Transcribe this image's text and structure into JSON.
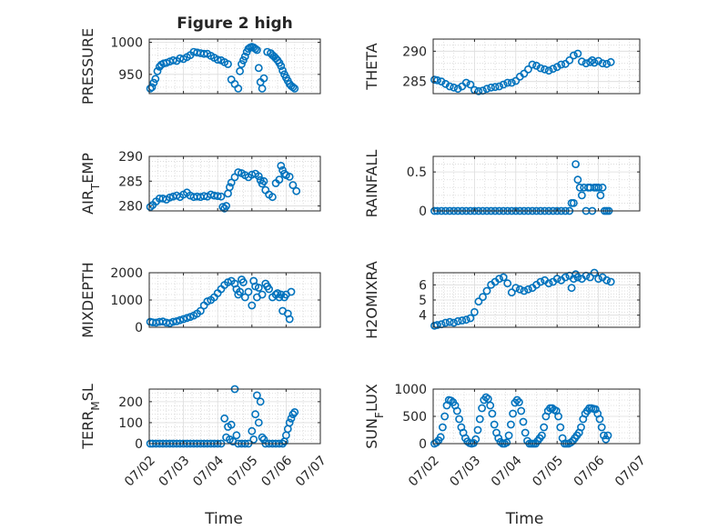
{
  "figure": {
    "title": "Figure 2 high",
    "xlabel": "Time",
    "x_tick_labels": [
      "07/02",
      "07/03",
      "07/04",
      "07/05",
      "07/06",
      "07/07"
    ]
  },
  "chart_data": [
    {
      "type": "scatter",
      "title": "Figure 2 high",
      "ylabel": "PRESSURE",
      "xlim": [
        0,
        5
      ],
      "ylim": [
        920,
        1005
      ],
      "yticks": [
        950,
        1000
      ],
      "grid": true,
      "marker_color": "#0072BD",
      "x": [
        0.03,
        0.08,
        0.13,
        0.18,
        0.24,
        0.3,
        0.35,
        0.42,
        0.5,
        0.6,
        0.7,
        0.8,
        0.9,
        1,
        1.1,
        1.2,
        1.3,
        1.4,
        1.5,
        1.6,
        1.7,
        1.8,
        1.9,
        2,
        2.1,
        2.2,
        2.3,
        2.4,
        2.5,
        2.6,
        2.65,
        2.7,
        2.75,
        2.8,
        2.85,
        2.9,
        2.95,
        3,
        3.05,
        3.1,
        3.15,
        3.2,
        3.25,
        3.3,
        3.35,
        3.45,
        3.55,
        3.6,
        3.65,
        3.7,
        3.75,
        3.8,
        3.85,
        3.9,
        3.95,
        4,
        4.05,
        4.1,
        4.15,
        4.2,
        4.25
      ],
      "y": [
        928,
        930,
        937,
        943,
        955,
        962,
        965,
        967,
        968,
        970,
        972,
        971,
        975,
        974,
        977,
        980,
        985,
        984,
        983,
        982,
        982,
        979,
        976,
        973,
        972,
        969,
        966,
        942,
        935,
        928,
        955,
        966,
        972,
        978,
        985,
        990,
        992,
        993,
        992,
        990,
        988,
        960,
        938,
        928,
        944,
        985,
        983,
        980,
        978,
        975,
        972,
        968,
        963,
        956,
        950,
        945,
        940,
        935,
        932,
        930,
        928
      ]
    },
    {
      "type": "scatter",
      "ylabel": "THETA",
      "xlim": [
        0,
        5
      ],
      "ylim": [
        283,
        292
      ],
      "yticks": [
        285,
        290
      ],
      "grid": true,
      "marker_color": "#0072BD",
      "x": [
        0.03,
        0.1,
        0.2,
        0.3,
        0.4,
        0.5,
        0.6,
        0.7,
        0.8,
        0.9,
        1,
        1.1,
        1.2,
        1.3,
        1.4,
        1.5,
        1.6,
        1.7,
        1.8,
        1.9,
        2,
        2.1,
        2.2,
        2.3,
        2.4,
        2.5,
        2.6,
        2.7,
        2.8,
        2.9,
        3,
        3.1,
        3.2,
        3.3,
        3.4,
        3.5,
        3.6,
        3.7,
        3.8,
        3.85,
        3.9,
        4,
        4.1,
        4.2,
        4.3
      ],
      "y": [
        285.3,
        285.2,
        285,
        284.6,
        284.2,
        284,
        283.8,
        284.2,
        284.8,
        284.5,
        283.6,
        283.4,
        283.5,
        283.8,
        284,
        284.1,
        284.2,
        284.5,
        284.8,
        284.8,
        285.1,
        285.8,
        286.3,
        287,
        287.8,
        287.6,
        287.2,
        287,
        286.8,
        287.1,
        287.4,
        287.8,
        287.9,
        288.5,
        289.3,
        289.6,
        288.3,
        288,
        288.2,
        288.5,
        288.1,
        288.4,
        288,
        287.9,
        288.2
      ]
    },
    {
      "type": "scatter",
      "ylabel": "AIR_TEMP",
      "xlim": [
        0,
        5
      ],
      "ylim": [
        279,
        290
      ],
      "yticks": [
        280,
        285,
        290
      ],
      "grid": true,
      "marker_color": "#0072BD",
      "x": [
        0.03,
        0.1,
        0.2,
        0.3,
        0.4,
        0.5,
        0.6,
        0.7,
        0.8,
        0.9,
        1,
        1.1,
        1.2,
        1.3,
        1.4,
        1.5,
        1.6,
        1.7,
        1.8,
        1.9,
        2,
        2.1,
        2.15,
        2.2,
        2.25,
        2.3,
        2.35,
        2.4,
        2.5,
        2.6,
        2.7,
        2.8,
        2.9,
        3,
        3.1,
        3.2,
        3.25,
        3.3,
        3.35,
        3.4,
        3.5,
        3.6,
        3.7,
        3.8,
        3.85,
        3.9,
        3.95,
        4,
        4.1,
        4.2,
        4.3
      ],
      "y": [
        279.8,
        280.2,
        280.9,
        281.5,
        281.5,
        281.3,
        281.7,
        281.9,
        282.1,
        281.8,
        282.3,
        282.7,
        282.1,
        281.8,
        281.9,
        281.8,
        282,
        281.9,
        282.3,
        282.1,
        282,
        281.9,
        279.8,
        279.5,
        280,
        282.5,
        283.8,
        284.7,
        285.8,
        286.8,
        286.6,
        286.2,
        285.8,
        286.3,
        286.5,
        286,
        285.2,
        284.5,
        285,
        283.2,
        282.3,
        281.8,
        284.6,
        285.3,
        288.1,
        287.2,
        286.5,
        286.2,
        285.9,
        284.2,
        283
      ]
    },
    {
      "type": "scatter",
      "ylabel": "RAINFALL",
      "xlim": [
        0,
        5
      ],
      "ylim": [
        0,
        0.7
      ],
      "yticks": [
        0,
        0.5
      ],
      "grid": true,
      "marker_color": "#0072BD",
      "x": [
        0.03,
        0.1,
        0.2,
        0.3,
        0.4,
        0.5,
        0.6,
        0.7,
        0.8,
        0.9,
        1,
        1.1,
        1.2,
        1.3,
        1.4,
        1.5,
        1.6,
        1.7,
        1.8,
        1.9,
        2,
        2.1,
        2.2,
        2.3,
        2.4,
        2.5,
        2.6,
        2.7,
        2.8,
        2.9,
        3,
        3.1,
        3.2,
        3.3,
        3.35,
        3.4,
        3.45,
        3.5,
        3.55,
        3.6,
        3.65,
        3.7,
        3.75,
        3.8,
        3.85,
        3.9,
        3.95,
        4,
        4.05,
        4.1,
        4.15,
        4.2,
        4.25
      ],
      "y": [
        0,
        0,
        0,
        0,
        0,
        0,
        0,
        0,
        0,
        0,
        0,
        0,
        0,
        0,
        0,
        0,
        0,
        0,
        0,
        0,
        0,
        0,
        0,
        0,
        0,
        0,
        0,
        0,
        0,
        0,
        0,
        0,
        0,
        0,
        0.1,
        0.1,
        0.6,
        0.4,
        0.3,
        0.2,
        0.3,
        0,
        0.3,
        0.3,
        0,
        0.3,
        0.3,
        0.3,
        0.2,
        0.3,
        0,
        0,
        0
      ]
    },
    {
      "type": "scatter",
      "ylabel": "MIXDEPTH",
      "xlim": [
        0,
        5
      ],
      "ylim": [
        0,
        2000
      ],
      "yticks": [
        0,
        1000,
        2000
      ],
      "grid": true,
      "marker_color": "#0072BD",
      "x": [
        0.03,
        0.1,
        0.2,
        0.3,
        0.4,
        0.5,
        0.6,
        0.7,
        0.8,
        0.9,
        1,
        1.1,
        1.2,
        1.3,
        1.4,
        1.5,
        1.6,
        1.7,
        1.8,
        1.9,
        2,
        2.1,
        2.2,
        2.3,
        2.4,
        2.5,
        2.55,
        2.6,
        2.65,
        2.7,
        2.75,
        2.8,
        2.9,
        3,
        3.05,
        3.1,
        3.15,
        3.2,
        3.3,
        3.4,
        3.45,
        3.5,
        3.6,
        3.7,
        3.75,
        3.8,
        3.85,
        3.9,
        3.95,
        4,
        4.05,
        4.1,
        4.15
      ],
      "y": [
        200,
        180,
        170,
        200,
        210,
        170,
        150,
        200,
        220,
        260,
        300,
        340,
        380,
        430,
        500,
        600,
        800,
        950,
        1000,
        1100,
        1250,
        1400,
        1550,
        1650,
        1700,
        1600,
        1400,
        1200,
        1300,
        1750,
        1650,
        1100,
        1300,
        800,
        1700,
        1500,
        1100,
        1450,
        1200,
        1600,
        1500,
        1400,
        1100,
        1200,
        1250,
        1100,
        1200,
        600,
        1100,
        1200,
        500,
        300,
        1300
      ]
    },
    {
      "type": "scatter",
      "ylabel": "H2OMIXRA",
      "xlim": [
        0,
        5
      ],
      "ylim": [
        3.2,
        6.8
      ],
      "yticks": [
        4,
        5,
        6
      ],
      "grid": true,
      "marker_color": "#0072BD",
      "x": [
        0.03,
        0.1,
        0.2,
        0.3,
        0.4,
        0.5,
        0.6,
        0.7,
        0.8,
        0.9,
        1,
        1.1,
        1.2,
        1.3,
        1.4,
        1.5,
        1.6,
        1.7,
        1.8,
        1.9,
        2,
        2.1,
        2.2,
        2.3,
        2.4,
        2.5,
        2.6,
        2.7,
        2.8,
        2.9,
        3,
        3.1,
        3.2,
        3.3,
        3.35,
        3.4,
        3.45,
        3.5,
        3.6,
        3.7,
        3.8,
        3.9,
        4,
        4.1,
        4.2,
        4.3
      ],
      "y": [
        3.3,
        3.35,
        3.4,
        3.5,
        3.55,
        3.5,
        3.6,
        3.65,
        3.7,
        3.8,
        4.2,
        4.9,
        5.2,
        5.6,
        6,
        6.2,
        6.4,
        6.5,
        6.1,
        5.5,
        5.8,
        5.7,
        5.6,
        5.7,
        5.8,
        6,
        6.2,
        6.3,
        6.1,
        6.2,
        6.4,
        6.3,
        6.5,
        6.6,
        5.8,
        6.4,
        6.7,
        6.5,
        6.4,
        6.6,
        6.5,
        6.8,
        6.4,
        6.5,
        6.3,
        6.2
      ]
    },
    {
      "type": "scatter",
      "ylabel": "TERR_MSL",
      "xlim": [
        0,
        5
      ],
      "ylim": [
        0,
        260
      ],
      "yticks": [
        0,
        100,
        200
      ],
      "grid": true,
      "marker_color": "#0072BD",
      "x": [
        0.03,
        0.1,
        0.2,
        0.3,
        0.4,
        0.5,
        0.6,
        0.7,
        0.8,
        0.9,
        1,
        1.1,
        1.2,
        1.3,
        1.4,
        1.5,
        1.6,
        1.7,
        1.8,
        1.9,
        2,
        2.1,
        2.2,
        2.25,
        2.3,
        2.35,
        2.4,
        2.45,
        2.5,
        2.55,
        2.6,
        2.7,
        2.8,
        2.9,
        3,
        3.05,
        3.1,
        3.15,
        3.2,
        3.25,
        3.3,
        3.35,
        3.4,
        3.5,
        3.6,
        3.7,
        3.8,
        3.9,
        3.95,
        4,
        4.05,
        4.1,
        4.15,
        4.2,
        4.25
      ],
      "y": [
        0,
        0,
        0,
        0,
        0,
        0,
        0,
        0,
        0,
        0,
        0,
        0,
        0,
        0,
        0,
        0,
        0,
        0,
        0,
        0,
        0,
        0,
        120,
        30,
        80,
        20,
        90,
        10,
        260,
        40,
        0,
        0,
        0,
        0,
        60,
        20,
        140,
        230,
        100,
        200,
        30,
        20,
        0,
        0,
        0,
        0,
        0,
        0,
        10,
        40,
        70,
        100,
        120,
        140,
        150
      ]
    },
    {
      "type": "scatter",
      "ylabel": "SUN_FLUX",
      "xlim": [
        0,
        5
      ],
      "ylim": [
        0,
        1000
      ],
      "yticks": [
        0,
        500,
        1000
      ],
      "grid": true,
      "marker_color": "#0072BD",
      "x": [
        0.03,
        0.08,
        0.13,
        0.18,
        0.23,
        0.28,
        0.33,
        0.38,
        0.43,
        0.48,
        0.53,
        0.58,
        0.63,
        0.68,
        0.73,
        0.78,
        0.83,
        0.88,
        0.93,
        0.98,
        1.03,
        1.08,
        1.13,
        1.18,
        1.23,
        1.28,
        1.33,
        1.38,
        1.43,
        1.48,
        1.53,
        1.58,
        1.63,
        1.68,
        1.73,
        1.78,
        1.83,
        1.88,
        1.93,
        1.98,
        2.03,
        2.08,
        2.13,
        2.18,
        2.23,
        2.28,
        2.33,
        2.38,
        2.43,
        2.48,
        2.53,
        2.58,
        2.63,
        2.68,
        2.73,
        2.78,
        2.83,
        2.88,
        2.93,
        2.98,
        3.03,
        3.08,
        3.13,
        3.18,
        3.23,
        3.28,
        3.33,
        3.38,
        3.43,
        3.48,
        3.53,
        3.58,
        3.63,
        3.68,
        3.73,
        3.78,
        3.83,
        3.88,
        3.93,
        3.98,
        4.03,
        4.08,
        4.13,
        4.18,
        4.23
      ],
      "y": [
        0,
        20,
        60,
        120,
        300,
        500,
        700,
        800,
        790,
        760,
        700,
        600,
        450,
        300,
        200,
        100,
        40,
        10,
        0,
        10,
        80,
        250,
        450,
        650,
        800,
        850,
        820,
        700,
        550,
        350,
        200,
        100,
        30,
        0,
        0,
        20,
        150,
        350,
        550,
        750,
        800,
        760,
        600,
        400,
        200,
        50,
        0,
        0,
        0,
        0,
        50,
        100,
        150,
        300,
        500,
        600,
        650,
        650,
        620,
        600,
        500,
        300,
        100,
        0,
        0,
        0,
        20,
        50,
        100,
        150,
        200,
        300,
        450,
        550,
        600,
        650,
        650,
        640,
        630,
        550,
        450,
        300,
        150,
        80,
        150
      ]
    }
  ]
}
